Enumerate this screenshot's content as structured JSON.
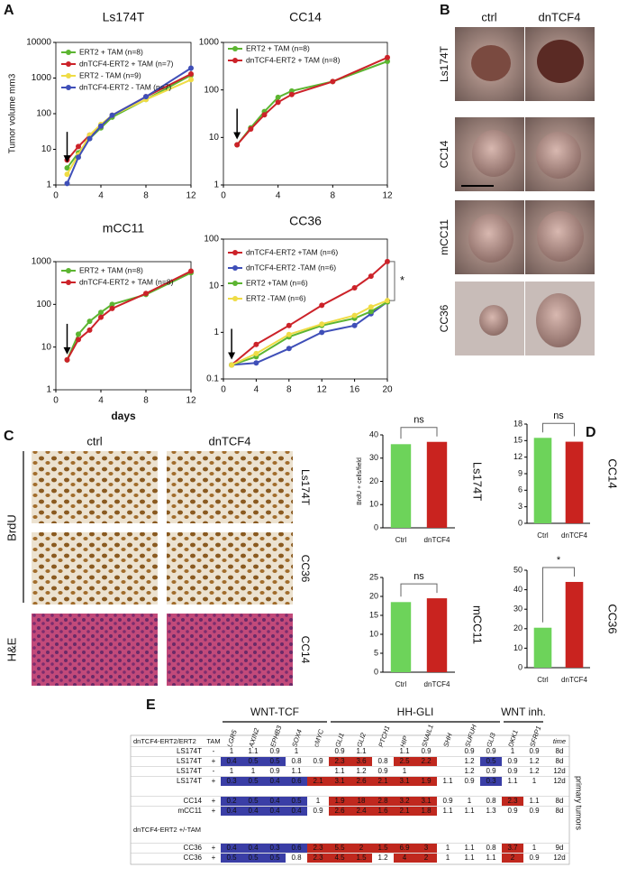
{
  "panel_labels": [
    "A",
    "B",
    "C",
    "D",
    "E"
  ],
  "chart_data": [
    {
      "type": "line",
      "title": "Ls174T",
      "ylabel": "Tumor volume mm3",
      "log_y": true,
      "x": [
        1,
        2,
        3,
        4,
        5,
        8,
        12
      ],
      "xlim": [
        0,
        12
      ],
      "xticks": [
        0,
        4,
        8,
        12
      ],
      "ylim": [
        1,
        10000
      ],
      "yticks": [
        1,
        10,
        100,
        1000,
        10000
      ],
      "series": [
        {
          "name": "ERT2 + TAM (n=8)",
          "color": "#5cb531",
          "values": [
            3,
            8,
            20,
            40,
            80,
            250,
            1200
          ]
        },
        {
          "name": "dnTCF4-ERT2 + TAM (n=7)",
          "color": "#cc2229",
          "values": [
            5,
            12,
            25,
            45,
            90,
            300,
            1300
          ]
        },
        {
          "name": "ERT2 - TAM (n=9)",
          "color": "#efdc45",
          "values": [
            2,
            7,
            25,
            50,
            90,
            250,
            900
          ]
        },
        {
          "name": "dnTCF4-ERT2 - TAM (n=7)",
          "color": "#3f4fb8",
          "values": [
            1.1,
            6,
            20,
            45,
            90,
            300,
            1900
          ]
        }
      ]
    },
    {
      "type": "line",
      "title": "CC14",
      "log_y": true,
      "x": [
        1,
        2,
        3,
        4,
        5,
        8,
        12
      ],
      "xlim": [
        0,
        12
      ],
      "xticks": [
        0,
        4,
        8,
        12
      ],
      "ylim": [
        1,
        1000
      ],
      "yticks": [
        1,
        10,
        100,
        1000
      ],
      "series": [
        {
          "name": "ERT2 + TAM (n=8)",
          "color": "#5cb531",
          "values": [
            7,
            16,
            35,
            70,
            95,
            150,
            400
          ]
        },
        {
          "name": "dnTCF4-ERT2 + TAM (n=8)",
          "color": "#cc2229",
          "values": [
            7,
            15,
            30,
            55,
            80,
            150,
            480
          ]
        }
      ]
    },
    {
      "type": "line",
      "title": "mCC11",
      "xlabel": "days",
      "log_y": true,
      "x": [
        1,
        2,
        3,
        4,
        5,
        8,
        12
      ],
      "xlim": [
        0,
        12
      ],
      "xticks": [
        0,
        4,
        8,
        12
      ],
      "ylim": [
        1,
        1000
      ],
      "yticks": [
        1,
        10,
        100,
        1000
      ],
      "series": [
        {
          "name": "ERT2 + TAM (n=8)",
          "color": "#5cb531",
          "values": [
            5,
            20,
            40,
            65,
            100,
            170,
            550
          ]
        },
        {
          "name": "dnTCF4-ERT2 + TAM (n=8)",
          "color": "#cc2229",
          "values": [
            5,
            15,
            25,
            50,
            80,
            180,
            600
          ]
        }
      ]
    },
    {
      "type": "line",
      "title": "CC36",
      "annotation": "*",
      "log_y": true,
      "x": [
        1,
        4,
        8,
        12,
        16,
        18,
        20
      ],
      "xlim": [
        0,
        20
      ],
      "xticks": [
        0,
        4,
        8,
        12,
        16,
        20
      ],
      "ylim": [
        0.1,
        100
      ],
      "yticks": [
        0.1,
        1,
        10,
        100
      ],
      "series": [
        {
          "name": "dnTCF4-ERT2 +TAM (n=6)",
          "color": "#cc2229",
          "values": [
            0.2,
            0.55,
            1.4,
            3.8,
            9,
            16,
            33
          ]
        },
        {
          "name": "dnTCF4-ERT2 -TAM (n=6)",
          "color": "#3f4fb8",
          "values": [
            0.2,
            0.22,
            0.45,
            1,
            1.4,
            2.5,
            4.5
          ]
        },
        {
          "name": "ERT2 +TAM (n=6)",
          "color": "#5cb531",
          "values": [
            0.2,
            0.3,
            0.8,
            1.4,
            2,
            2.8,
            4.5
          ]
        },
        {
          "name": "ERT2 -TAM (n=6)",
          "color": "#efdc45",
          "values": [
            0.2,
            0.35,
            0.9,
            1.5,
            2.3,
            3.5,
            4.8
          ]
        }
      ]
    },
    {
      "type": "bar",
      "title": "Ls174T",
      "ylabel": "BrdU + cells/field",
      "categories": [
        "Ctrl",
        "dnTCF4"
      ],
      "values": [
        36,
        37
      ],
      "colors": [
        "#6dd35a",
        "#c9231f"
      ],
      "ylim": [
        0,
        40
      ],
      "yticks": [
        0,
        10,
        20,
        30,
        40
      ],
      "annotation": "ns"
    },
    {
      "type": "bar",
      "title": "CC14",
      "categories": [
        "Ctrl",
        "dnTCF4"
      ],
      "values": [
        15.5,
        14.8
      ],
      "colors": [
        "#6dd35a",
        "#c9231f"
      ],
      "ylim": [
        0,
        18
      ],
      "yticks": [
        0,
        3,
        6,
        9,
        12,
        15,
        18
      ],
      "annotation": "ns"
    },
    {
      "type": "bar",
      "title": "mCC11",
      "categories": [
        "Ctrl",
        "dnTCF4"
      ],
      "values": [
        18.5,
        19.5
      ],
      "colors": [
        "#6dd35a",
        "#c9231f"
      ],
      "ylim": [
        0,
        25
      ],
      "yticks": [
        0,
        5,
        10,
        15,
        20,
        25
      ],
      "annotation": "ns"
    },
    {
      "type": "bar",
      "title": "CC36",
      "categories": [
        "Ctrl",
        "dnTCF4"
      ],
      "values": [
        20.5,
        44
      ],
      "colors": [
        "#6dd35a",
        "#c9231f"
      ],
      "ylim": [
        0,
        50
      ],
      "yticks": [
        0,
        10,
        20,
        30,
        40,
        50
      ],
      "annotation": "*"
    }
  ],
  "photos_b": {
    "columns": [
      "ctrl",
      "dnTCF4"
    ],
    "rows": [
      "Ls174T",
      "CC14",
      "mCC11",
      "CC36"
    ]
  },
  "photos_c": {
    "columns": [
      "ctrl",
      "dnTCF4"
    ],
    "rows": [
      "Ls174T",
      "CC36",
      "CC14"
    ],
    "stains": [
      "BrdU",
      "H&E"
    ]
  },
  "table": {
    "groups": [
      {
        "name": "WNT-TCF",
        "genes": [
          "LGR5",
          "AXIN2",
          "EPHB3",
          "SOX4",
          "cMYC"
        ]
      },
      {
        "name": "HH-GLI",
        "genes": [
          "GLI1",
          "GLI2",
          "PTCH1",
          "HIP",
          "SNAIL1",
          "SHH",
          "SUFUH",
          "GLI3"
        ]
      },
      {
        "name": "WNT inh.",
        "genes": [
          "DKK1",
          "SFRP1"
        ]
      }
    ],
    "tam_header": "TAM",
    "time_header": "time",
    "section_labels": [
      "dnTCF4-ERT2/ERT2",
      "dnTCF4-ERT2 +/-TAM"
    ],
    "side_label": "primary tumors",
    "low_color": "#3a3ea6",
    "high_color": "#c0281e",
    "rows": [
      {
        "label": "LS174T",
        "tam": "-",
        "cells": [
          1,
          1.1,
          0.9,
          1,
          null,
          0.9,
          1.1,
          null,
          1.1,
          0.9,
          null,
          0.9,
          0.9,
          1,
          0.9
        ],
        "shade": "...............",
        "time": "8d"
      },
      {
        "label": "LS174T",
        "tam": "+",
        "cells": [
          0.4,
          0.5,
          0.5,
          0.8,
          0.9,
          2.3,
          3.6,
          0.8,
          2.5,
          2.2,
          null,
          1.2,
          0.5,
          0.9,
          1.2
        ],
        "shade": "bbb..rr.rr..b..",
        "time": "8d"
      },
      {
        "label": "LS174T",
        "tam": "-",
        "cells": [
          1,
          1,
          0.9,
          1.1,
          null,
          1.1,
          1.2,
          0.9,
          1,
          null,
          null,
          1.2,
          0.9,
          0.9,
          1.2
        ],
        "shade": "...............",
        "time": "12d"
      },
      {
        "label": "LS174T",
        "tam": "+",
        "cells": [
          0.3,
          0.5,
          0.4,
          0.6,
          2.1,
          3.1,
          2.6,
          2.1,
          3.1,
          1.9,
          1.1,
          0.9,
          0.3,
          1.1,
          1
        ],
        "shade": "bbbbrrrrrr..b..",
        "time": "12d"
      },
      {
        "label": "CC14",
        "tam": "+",
        "cells": [
          0.2,
          0.5,
          0.4,
          0.5,
          1,
          1.9,
          18,
          2.8,
          3.2,
          3.1,
          0.9,
          1,
          0.8,
          2.3,
          1.1
        ],
        "shade": "bbbb.rrrrr...r.",
        "time": "8d"
      },
      {
        "label": "mCC11",
        "tam": "+",
        "cells": [
          0.4,
          0.4,
          0.4,
          0.4,
          0.9,
          2.6,
          2.4,
          1.6,
          2.1,
          1.8,
          1.1,
          1.1,
          1.3,
          0.9,
          0.9
        ],
        "shade": "bbbb.rrrrr.....",
        "time": "8d"
      },
      {
        "label": "CC36",
        "tam": "+",
        "cells": [
          0.4,
          0.4,
          0.3,
          0.6,
          2.3,
          5.5,
          2,
          1.5,
          6.9,
          3,
          1,
          1.1,
          0.8,
          3.7,
          1
        ],
        "shade": "bbbbrrrrrr...r.",
        "time": "9d"
      },
      {
        "label": "CC36",
        "tam": "+",
        "cells": [
          0.5,
          0.5,
          0.5,
          0.8,
          2.3,
          4.5,
          1.5,
          1.2,
          4,
          2,
          1,
          1.1,
          1.1,
          2,
          0.9
        ],
        "shade": "bbb.rrr.rr...r.",
        "time": "12d"
      }
    ]
  }
}
